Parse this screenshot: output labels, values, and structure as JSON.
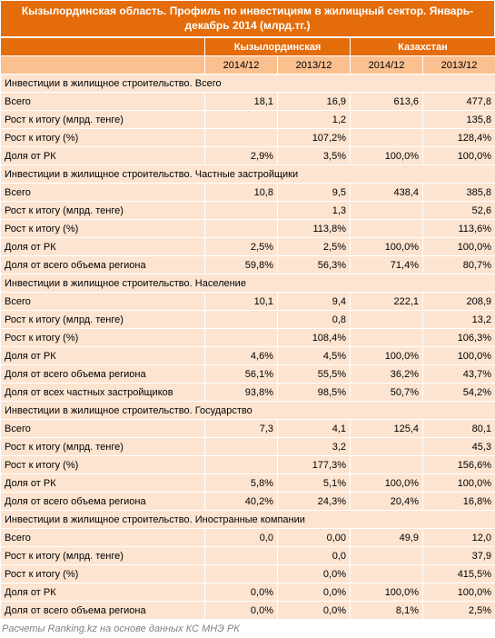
{
  "title": "Кызылординская область. Профиль по инвестициям в жилищный сектор. Январь-декабрь 2014 (млрд.тг.)",
  "header": {
    "group1": "Кызылординская",
    "group2": "Казахстан",
    "p_2014": "2014/12",
    "p_2013": "2013/12"
  },
  "sections": [
    {
      "name": "Инвестиции в жилищное строительство. Всего",
      "rows": [
        {
          "label": "Всего",
          "v": [
            "18,1",
            "16,9",
            "613,6",
            "477,8"
          ]
        },
        {
          "label": "Рост к итогу  (млрд. тенге)",
          "v": [
            "",
            "1,2",
            "",
            "135,8"
          ]
        },
        {
          "label": "Рост к итогу (%)",
          "v": [
            "",
            "107,2%",
            "",
            "128,4%"
          ]
        },
        {
          "label": "Доля от РК",
          "v": [
            "2,9%",
            "3,5%",
            "100,0%",
            "100,0%"
          ]
        }
      ]
    },
    {
      "name": "Инвестиции в жилищное строительство. Частные застройщики",
      "rows": [
        {
          "label": "Всего",
          "v": [
            "10,8",
            "9,5",
            "438,4",
            "385,8"
          ]
        },
        {
          "label": "Рост к итогу  (млрд. тенге)",
          "v": [
            "",
            "1,3",
            "",
            "52,6"
          ]
        },
        {
          "label": "Рост к итогу (%)",
          "v": [
            "",
            "113,8%",
            "",
            "113,6%"
          ]
        },
        {
          "label": "Доля от РК",
          "v": [
            "2,5%",
            "2,5%",
            "100,0%",
            "100,0%"
          ]
        },
        {
          "label": "Доля от всего объема региона",
          "v": [
            "59,8%",
            "56,3%",
            "71,4%",
            "80,7%"
          ]
        }
      ]
    },
    {
      "name": "Инвестиции в жилищное строительство. Население",
      "rows": [
        {
          "label": "Всего",
          "v": [
            "10,1",
            "9,4",
            "222,1",
            "208,9"
          ]
        },
        {
          "label": "Рост к итогу  (млрд. тенге)",
          "v": [
            "",
            "0,8",
            "",
            "13,2"
          ]
        },
        {
          "label": "Рост к итогу (%)",
          "v": [
            "",
            "108,4%",
            "",
            "106,3%"
          ]
        },
        {
          "label": "Доля от РК",
          "v": [
            "4,6%",
            "4,5%",
            "100,0%",
            "100,0%"
          ]
        },
        {
          "label": "Доля от всего объема региона",
          "v": [
            "56,1%",
            "55,5%",
            "36,2%",
            "43,7%"
          ]
        },
        {
          "label": "Доля от всех частных застройщиков",
          "v": [
            "93,8%",
            "98,5%",
            "50,7%",
            "54,2%"
          ]
        }
      ]
    },
    {
      "name": "Инвестиции в жилищное строительство. Государство",
      "rows": [
        {
          "label": "Всего",
          "v": [
            "7,3",
            "4,1",
            "125,4",
            "80,1"
          ]
        },
        {
          "label": "Рост к итогу  (млрд. тенге)",
          "v": [
            "",
            "3,2",
            "",
            "45,3"
          ]
        },
        {
          "label": "Рост к итогу (%)",
          "v": [
            "",
            "177,3%",
            "",
            "156,6%"
          ]
        },
        {
          "label": "Доля от РК",
          "v": [
            "5,8%",
            "5,1%",
            "100,0%",
            "100,0%"
          ]
        },
        {
          "label": "Доля от всего объема региона",
          "v": [
            "40,2%",
            "24,3%",
            "20,4%",
            "16,8%"
          ]
        }
      ]
    },
    {
      "name": "Инвестиции в жилищное строительство. Иностранные компании",
      "rows": [
        {
          "label": "Всего",
          "v": [
            "0,0",
            "0,00",
            "49,9",
            "12,0"
          ]
        },
        {
          "label": "Рост к итогу  (млрд. тенге)",
          "v": [
            "",
            "0,0",
            "",
            "37,9"
          ]
        },
        {
          "label": "Рост к итогу (%)",
          "v": [
            "",
            "0,0%",
            "",
            "415,5%"
          ]
        },
        {
          "label": "Доля от РК",
          "v": [
            "0,0%",
            "0,0%",
            "100,0%",
            "100,0%"
          ]
        },
        {
          "label": "Доля от всего объема региона",
          "v": [
            "0,0%",
            "0,0%",
            "8,1%",
            "2,5%"
          ]
        }
      ]
    }
  ],
  "footer": "Расчеты Ranking.kz на основе данных КС МНЭ РК",
  "colors": {
    "header_bg": "#e46c0a",
    "subhead_bg": "#fac090",
    "cell_bg": "#fde4d0",
    "header_text": "#ffffff",
    "text": "#000000",
    "footer_text": "#808080",
    "border": "#ffffff"
  }
}
